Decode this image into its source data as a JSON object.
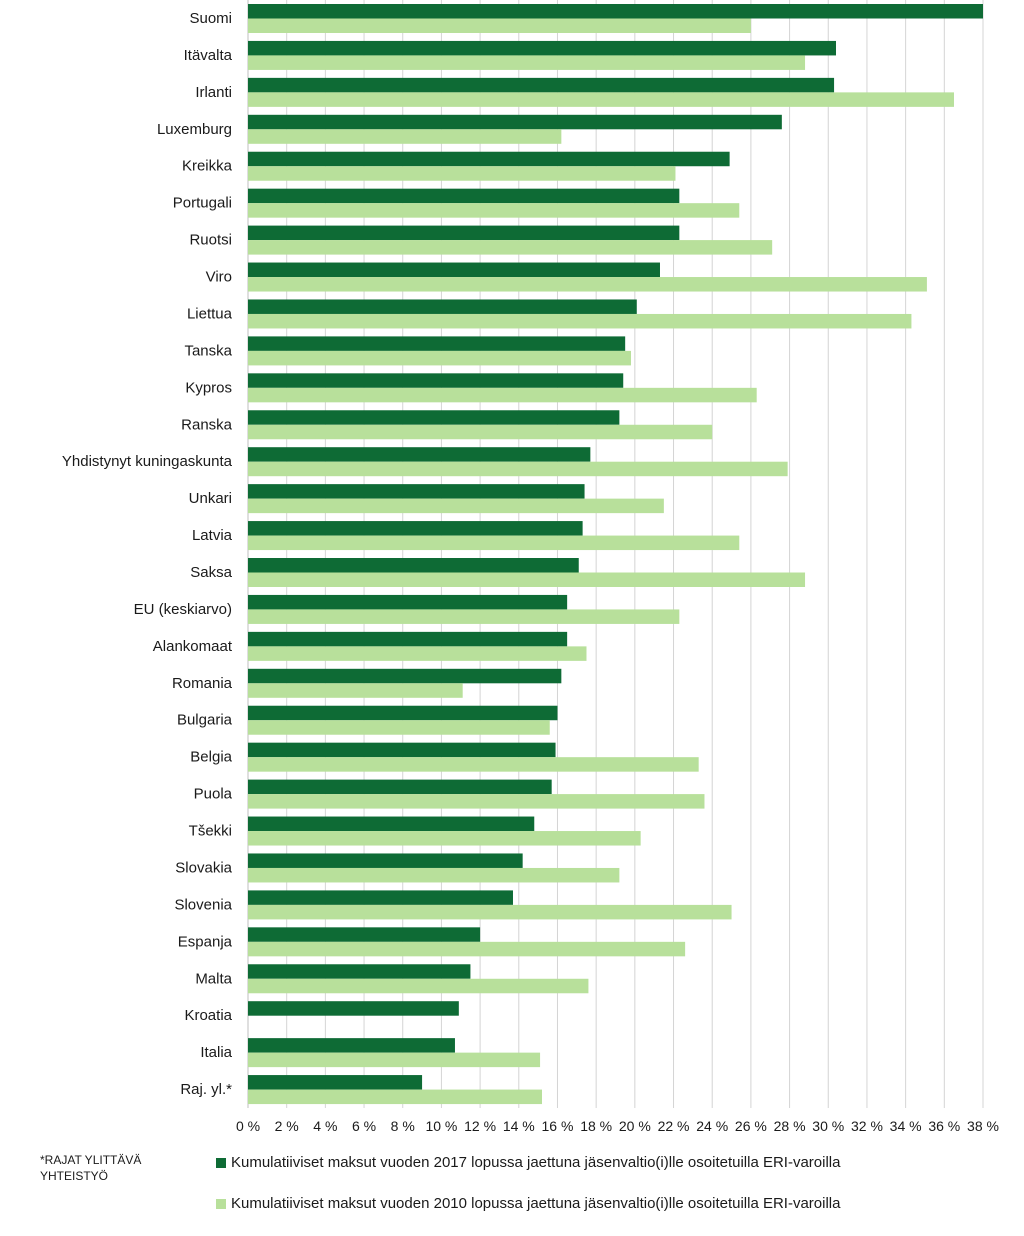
{
  "chart_data": {
    "type": "bar",
    "orientation": "horizontal",
    "categories": [
      "Suomi",
      "Itävalta",
      "Irlanti",
      "Luxemburg",
      "Kreikka",
      "Portugali",
      "Ruotsi",
      "Viro",
      "Liettua",
      "Tanska",
      "Kypros",
      "Ranska",
      "Yhdistynyt kuningaskunta",
      "Unkari",
      "Latvia",
      "Saksa",
      "EU (keskiarvo)",
      "Alankomaat",
      "Romania",
      "Bulgaria",
      "Belgia",
      "Puola",
      "Tšekki",
      "Slovakia",
      "Slovenia",
      "Espanja",
      "Malta",
      "Kroatia",
      "Italia",
      "Raj. yl.*"
    ],
    "series": [
      {
        "name": "Kumulatiiviset maksut vuoden 2017 lopussa jaettuna jäsenvaltio(i)lle osoitetuilla ERI-varoilla",
        "color": "#0e6b35",
        "values": [
          38.0,
          30.4,
          30.3,
          27.6,
          24.9,
          22.3,
          22.3,
          21.3,
          20.1,
          19.5,
          19.4,
          19.2,
          17.7,
          17.4,
          17.3,
          17.1,
          16.5,
          16.5,
          16.2,
          16.0,
          15.9,
          15.7,
          14.8,
          14.2,
          13.7,
          12.0,
          11.5,
          10.9,
          10.7,
          9.0
        ]
      },
      {
        "name": "Kumulatiiviset maksut vuoden 2010 lopussa jaettuna jäsenvaltio(i)lle osoitetuilla ERI-varoilla",
        "color": "#b8e09b",
        "values": [
          26.0,
          28.8,
          36.5,
          16.2,
          22.1,
          25.4,
          27.1,
          35.1,
          34.3,
          19.8,
          26.3,
          24.0,
          27.9,
          21.5,
          25.4,
          28.8,
          22.3,
          17.5,
          11.1,
          15.6,
          23.3,
          23.6,
          20.3,
          19.2,
          25.0,
          22.6,
          17.6,
          0,
          15.1,
          15.2
        ]
      }
    ],
    "xlim": [
      0,
      38
    ],
    "x_ticks": [
      "0 %",
      "2 %",
      "4 %",
      "6 %",
      "8 %",
      "10 %",
      "12 %",
      "14 %",
      "16 %",
      "18 %",
      "20 %",
      "22 %",
      "24 %",
      "26 %",
      "28 %",
      "30 %",
      "32 %",
      "34 %",
      "36 %",
      "38 %"
    ],
    "grid": true,
    "legend_position": "bottom"
  },
  "footnote": {
    "line1": "*RAJAT YLITTÄVÄ",
    "line2": "YHTEISTYÖ"
  }
}
